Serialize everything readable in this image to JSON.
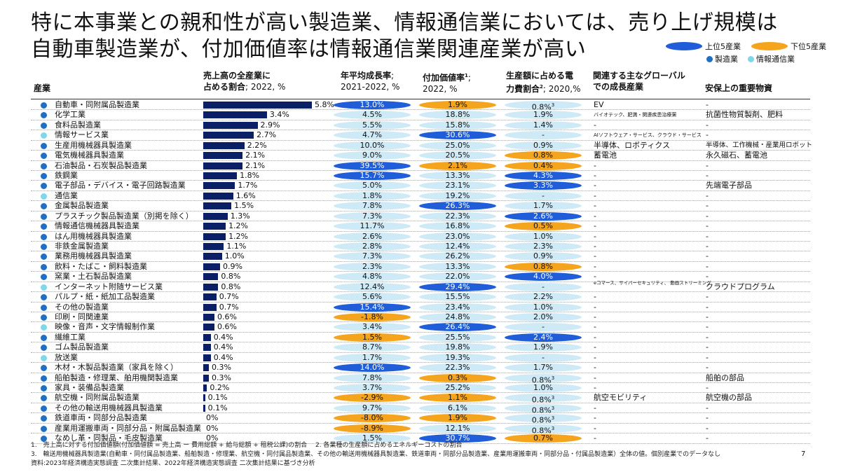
{
  "title": {
    "line1": "特に本事業との親和性が高い製造業、情報通信業においては、売り上げ規模は",
    "line2": "自動車製造業が、付加価値率は情報通信業関連産業が高い"
  },
  "legend": {
    "top5": "上位5産業",
    "bottom5": "下位5産業",
    "manufacturing": "製造業",
    "ict": "情報通信業"
  },
  "colors": {
    "manufacturing_dot": "#1f6fc5",
    "ict_dot": "#7fd8e8",
    "top5": "#1f5ed8",
    "bottom5": "#f5a41d",
    "plain": "#cfeaf7",
    "bar": "#0b1f66"
  },
  "headers": {
    "industry": "産業",
    "share_line1": "売上高の全産業に",
    "share_line2_bold": "占める割合",
    "share_line2_rest": "; 2022, %",
    "growth_line1": "年平均成長率",
    "growth_line1_rest": ";",
    "growth_line2": "2021-2022, %",
    "va_line1": "付加価値率",
    "va_sup": "1",
    "va_line1_rest": ";",
    "va_line2": "2022, %",
    "elec_line1": "生産額に占める電",
    "elec_line2_bold": "力費割合",
    "elec_sup": "2",
    "elec_line2_rest": "; 2020,%",
    "global_line1": "関連する主なグローバル",
    "global_line2": "での成長産業",
    "security": "安保上の重要物資"
  },
  "rows": [
    {
      "type": "m",
      "name": "自動車・同附属品製造業",
      "share": 5.8,
      "share_label": "5.8%",
      "growth": "13.0%",
      "gs": "blue",
      "va": "1.9%",
      "vs": "orange",
      "elec": "0.8%",
      "es": "plain",
      "esup": "3",
      "global": "EV",
      "gsize": "",
      "sec": "-",
      "ssize": ""
    },
    {
      "type": "m",
      "name": "化学工業",
      "share": 3.4,
      "share_label": "3.4%",
      "growth": "4.5%",
      "gs": "plain",
      "va": "18.8%",
      "vs": "plain",
      "elec": "1.9%",
      "es": "plain",
      "esup": "",
      "global": "バイオテック、肥満・関連疾患治療薬",
      "gsize": "small",
      "sec": "抗菌性物質製剤、肥料",
      "ssize": ""
    },
    {
      "type": "m",
      "name": "食料品製造業",
      "share": 2.9,
      "share_label": "2.9%",
      "growth": "5.5%",
      "gs": "plain",
      "va": "15.8%",
      "vs": "plain",
      "elec": "1.4%",
      "es": "plain",
      "esup": "",
      "global": "-",
      "gsize": "",
      "sec": "-",
      "ssize": ""
    },
    {
      "type": "i",
      "name": "情報サービス業",
      "share": 2.7,
      "share_label": "2.7%",
      "growth": "4.7%",
      "gs": "plain",
      "va": "30.6%",
      "vs": "blue",
      "elec": "-",
      "es": "plain",
      "esup": "",
      "global": "AIソフトウェア・サービス、クラウド・サービス",
      "gsize": "small",
      "sec": "-",
      "ssize": ""
    },
    {
      "type": "m",
      "name": "生産用機械器具製造業",
      "share": 2.2,
      "share_label": "2.2%",
      "growth": "10.0%",
      "gs": "plain",
      "va": "25.0%",
      "vs": "plain",
      "elec": "0.9%",
      "es": "plain",
      "esup": "",
      "global": "半導体、ロボティクス",
      "gsize": "",
      "sec": "半導体、工作機械・産業用ロボット",
      "ssize": "small"
    },
    {
      "type": "m",
      "name": "電気機械器具製造業",
      "share": 2.1,
      "share_label": "2.1%",
      "growth": "9.0%",
      "gs": "plain",
      "va": "20.5%",
      "vs": "plain",
      "elec": "0.8%",
      "es": "orange",
      "esup": "",
      "global": "蓄電池",
      "gsize": "",
      "sec": "永久磁石、蓄電池",
      "ssize": ""
    },
    {
      "type": "m",
      "name": "石油製品・石炭製品製造業",
      "share": 2.1,
      "share_label": "2.1%",
      "growth": "39.5%",
      "gs": "blue",
      "va": "2.1%",
      "vs": "orange",
      "elec": "0.4%",
      "es": "orange",
      "esup": "",
      "global": "-",
      "gsize": "",
      "sec": "-",
      "ssize": ""
    },
    {
      "type": "m",
      "name": "鉄鋼業",
      "share": 1.8,
      "share_label": "1.8%",
      "growth": "15.7%",
      "gs": "blue",
      "va": "13.3%",
      "vs": "plain",
      "elec": "4.3%",
      "es": "blue",
      "esup": "",
      "global": "-",
      "gsize": "",
      "sec": "-",
      "ssize": ""
    },
    {
      "type": "m",
      "name": "電子部品・デバイス・電子回路製造業",
      "share": 1.7,
      "share_label": "1.7%",
      "growth": "5.0%",
      "gs": "plain",
      "va": "23.1%",
      "vs": "plain",
      "elec": "3.3%",
      "es": "blue",
      "esup": "",
      "global": "-",
      "gsize": "",
      "sec": "先端電子部品",
      "ssize": ""
    },
    {
      "type": "i",
      "name": "通信業",
      "share": 1.6,
      "share_label": "1.6%",
      "growth": "1.8%",
      "gs": "plain",
      "va": "19.2%",
      "vs": "plain",
      "elec": "-",
      "es": "plain",
      "esup": "",
      "global": "-",
      "gsize": "",
      "sec": "-",
      "ssize": ""
    },
    {
      "type": "m",
      "name": "金属製品製造業",
      "share": 1.5,
      "share_label": "1.5%",
      "growth": "7.8%",
      "gs": "plain",
      "va": "26.3%",
      "vs": "blue",
      "elec": "1.7%",
      "es": "plain",
      "esup": "",
      "global": "-",
      "gsize": "",
      "sec": "-",
      "ssize": ""
    },
    {
      "type": "m",
      "name": "プラスチック製品製造業（別掲を除く）",
      "share": 1.3,
      "share_label": "1.3%",
      "growth": "7.3%",
      "gs": "plain",
      "va": "22.3%",
      "vs": "plain",
      "elec": "2.6%",
      "es": "blue",
      "esup": "",
      "global": "-",
      "gsize": "",
      "sec": "-",
      "ssize": ""
    },
    {
      "type": "m",
      "name": "情報通信機械器具製造業",
      "share": 1.2,
      "share_label": "1.2%",
      "growth": "11.7%",
      "gs": "plain",
      "va": "16.8%",
      "vs": "plain",
      "elec": "0.5%",
      "es": "orange",
      "esup": "",
      "global": "-",
      "gsize": "",
      "sec": "-",
      "ssize": ""
    },
    {
      "type": "m",
      "name": "はん用機械器具製造業",
      "share": 1.2,
      "share_label": "1.2%",
      "growth": "2.6%",
      "gs": "plain",
      "va": "23.0%",
      "vs": "plain",
      "elec": "1.0%",
      "es": "plain",
      "esup": "",
      "global": "-",
      "gsize": "",
      "sec": "-",
      "ssize": ""
    },
    {
      "type": "m",
      "name": "非鉄金属製造業",
      "share": 1.1,
      "share_label": "1.1%",
      "growth": "2.8%",
      "gs": "plain",
      "va": "12.4%",
      "vs": "plain",
      "elec": "2.3%",
      "es": "plain",
      "esup": "",
      "global": "-",
      "gsize": "",
      "sec": "-",
      "ssize": ""
    },
    {
      "type": "m",
      "name": "業務用機械器具製造業",
      "share": 1.0,
      "share_label": "1.0%",
      "growth": "7.3%",
      "gs": "plain",
      "va": "26.2%",
      "vs": "plain",
      "elec": "0.9%",
      "es": "plain",
      "esup": "",
      "global": "-",
      "gsize": "",
      "sec": "-",
      "ssize": ""
    },
    {
      "type": "m",
      "name": "飲料・たばこ・飼料製造業",
      "share": 0.9,
      "share_label": "0.9%",
      "growth": "2.3%",
      "gs": "plain",
      "va": "13.3%",
      "vs": "plain",
      "elec": "0.8%",
      "es": "orange",
      "esup": "",
      "global": "-",
      "gsize": "",
      "sec": "-",
      "ssize": ""
    },
    {
      "type": "m",
      "name": "窯業・土石製品製造業",
      "share": 0.8,
      "share_label": "0.8%",
      "growth": "4.8%",
      "gs": "plain",
      "va": "22.0%",
      "vs": "plain",
      "elec": "4.0%",
      "es": "blue",
      "esup": "",
      "global": "-",
      "gsize": "",
      "sec": "-",
      "ssize": ""
    },
    {
      "type": "i",
      "name": "インターネット附随サービス業",
      "share": 0.8,
      "share_label": "0.8%",
      "growth": "12.4%",
      "gs": "plain",
      "va": "29.4%",
      "vs": "blue",
      "elec": "-",
      "es": "plain",
      "esup": "",
      "global": "eコマース、サイバーセキュリティ、 動画ストリーミング",
      "gsize": "tiny",
      "sec": "クラウドプログラム",
      "ssize": ""
    },
    {
      "type": "m",
      "name": "パルプ・紙・紙加工品製造業",
      "share": 0.7,
      "share_label": "0.7%",
      "growth": "5.6%",
      "gs": "plain",
      "va": "15.5%",
      "vs": "plain",
      "elec": "2.2%",
      "es": "plain",
      "esup": "",
      "global": "-",
      "gsize": "",
      "sec": "-",
      "ssize": ""
    },
    {
      "type": "m",
      "name": "その他の製造業",
      "share": 0.7,
      "share_label": "0.7%",
      "growth": "15.4%",
      "gs": "blue",
      "va": "23.4%",
      "vs": "plain",
      "elec": "1.0%",
      "es": "plain",
      "esup": "",
      "global": "-",
      "gsize": "",
      "sec": "-",
      "ssize": ""
    },
    {
      "type": "m",
      "name": "印刷・同関連業",
      "share": 0.6,
      "share_label": "0.6%",
      "growth": "-1.8%",
      "gs": "orange",
      "va": "24.8%",
      "vs": "plain",
      "elec": "2.0%",
      "es": "plain",
      "esup": "",
      "global": "-",
      "gsize": "",
      "sec": "-",
      "ssize": ""
    },
    {
      "type": "i",
      "name": "映像・音声・文字情報制作業",
      "share": 0.6,
      "share_label": "0.6%",
      "growth": "3.4%",
      "gs": "plain",
      "va": "26.4%",
      "vs": "blue",
      "elec": "-",
      "es": "plain",
      "esup": "",
      "global": "-",
      "gsize": "",
      "sec": "-",
      "ssize": ""
    },
    {
      "type": "m",
      "name": "繊維工業",
      "share": 0.4,
      "share_label": "0.4%",
      "growth": "1.5%",
      "gs": "orange",
      "va": "25.5%",
      "vs": "plain",
      "elec": "2.4%",
      "es": "blue",
      "esup": "",
      "global": "-",
      "gsize": "",
      "sec": "-",
      "ssize": ""
    },
    {
      "type": "m",
      "name": "ゴム製品製造業",
      "share": 0.4,
      "share_label": "0.4%",
      "growth": "8.7%",
      "gs": "plain",
      "va": "19.8%",
      "vs": "plain",
      "elec": "1.9%",
      "es": "plain",
      "esup": "",
      "global": "-",
      "gsize": "",
      "sec": "-",
      "ssize": ""
    },
    {
      "type": "i",
      "name": "放送業",
      "share": 0.4,
      "share_label": "0.4%",
      "growth": "1.7%",
      "gs": "plain",
      "va": "19.3%",
      "vs": "plain",
      "elec": "-",
      "es": "plain",
      "esup": "",
      "global": "-",
      "gsize": "",
      "sec": "-",
      "ssize": ""
    },
    {
      "type": "m",
      "name": "木材・木製品製造業（家具を除く）",
      "share": 0.3,
      "share_label": "0.3%",
      "growth": "14.0%",
      "gs": "blue",
      "va": "22.3%",
      "vs": "plain",
      "elec": "1.7%",
      "es": "plain",
      "esup": "",
      "global": "-",
      "gsize": "",
      "sec": "-",
      "ssize": ""
    },
    {
      "type": "m",
      "name": "船舶製造・修理業、舶用機関製造業",
      "share": 0.3,
      "share_label": "0.3%",
      "growth": "7.8%",
      "gs": "plain",
      "va": "0.3%",
      "vs": "orange",
      "elec": "0.8%",
      "es": "plain",
      "esup": "3",
      "global": "-",
      "gsize": "",
      "sec": "船舶の部品",
      "ssize": ""
    },
    {
      "type": "m",
      "name": "家具・装備品製造業",
      "share": 0.2,
      "share_label": "0.2%",
      "growth": "3.7%",
      "gs": "plain",
      "va": "25.2%",
      "vs": "plain",
      "elec": "1.0%",
      "es": "plain",
      "esup": "",
      "global": "-",
      "gsize": "",
      "sec": "-",
      "ssize": ""
    },
    {
      "type": "m",
      "name": "航空機・同附属品製造業",
      "share": 0.1,
      "share_label": "0.1%",
      "growth": "-2.9%",
      "gs": "orange",
      "va": "1.1%",
      "vs": "orange",
      "elec": "0.8%",
      "es": "plain",
      "esup": "3",
      "global": "航空モビリティ",
      "gsize": "",
      "sec": "航空機の部品",
      "ssize": ""
    },
    {
      "type": "m",
      "name": "その他の輸送用機械器具製造業",
      "share": 0.1,
      "share_label": "0.1%",
      "growth": "9.7%",
      "gs": "plain",
      "va": "6.1%",
      "vs": "plain",
      "elec": "0.8%",
      "es": "plain",
      "esup": "3",
      "global": "-",
      "gsize": "",
      "sec": "-",
      "ssize": ""
    },
    {
      "type": "m",
      "name": "鉄道車両・同部分品製造業",
      "share": 0,
      "share_label": "0%",
      "growth": "-8.0%",
      "gs": "orange",
      "va": "1.9%",
      "vs": "orange",
      "elec": "0.8%",
      "es": "plain",
      "esup": "3",
      "global": "-",
      "gsize": "",
      "sec": "-",
      "ssize": ""
    },
    {
      "type": "m",
      "name": "産業用運搬車両・同部分品・附属品製造業",
      "share": 0,
      "share_label": "0%",
      "growth": "-8.9%",
      "gs": "orange",
      "va": "12.1%",
      "vs": "plain",
      "elec": "0.8%",
      "es": "plain",
      "esup": "3",
      "global": "-",
      "gsize": "",
      "sec": "-",
      "ssize": ""
    },
    {
      "type": "m",
      "name": "なめし革・同製品・毛皮製造業",
      "share": 0,
      "share_label": "0%",
      "growth": "1.5%",
      "gs": "plain",
      "va": "30.7%",
      "vs": "blue",
      "elec": "0.7%",
      "es": "orange",
      "esup": "",
      "global": "-",
      "gsize": "",
      "sec": "-",
      "ssize": ""
    }
  ],
  "notes": {
    "line1": "1.　売上高に対する付加価値額(付加価値額 = 売上高 ー 費用総額 + 給与総額 + 租税公課)の割合　 2. 各業種の生産額に占めるエネルギーコストの割合",
    "line2": "3.　輸送用機械器具製造業(自動車・同付属品製造業、船舶製造・修理業、航空機・同付属品製造業、その他の輸送用機械器具製造業、鉄道車両・同部分品製造業、産業用運搬車両・同部分品・付属品製造業）全体の値。個別産業でのデータなし",
    "line3": "資料:2023年経済構造実態調査 二次集計結果、2022年経済構造実態調査 二次集計結果に基づき分析"
  },
  "page_number": "7"
}
